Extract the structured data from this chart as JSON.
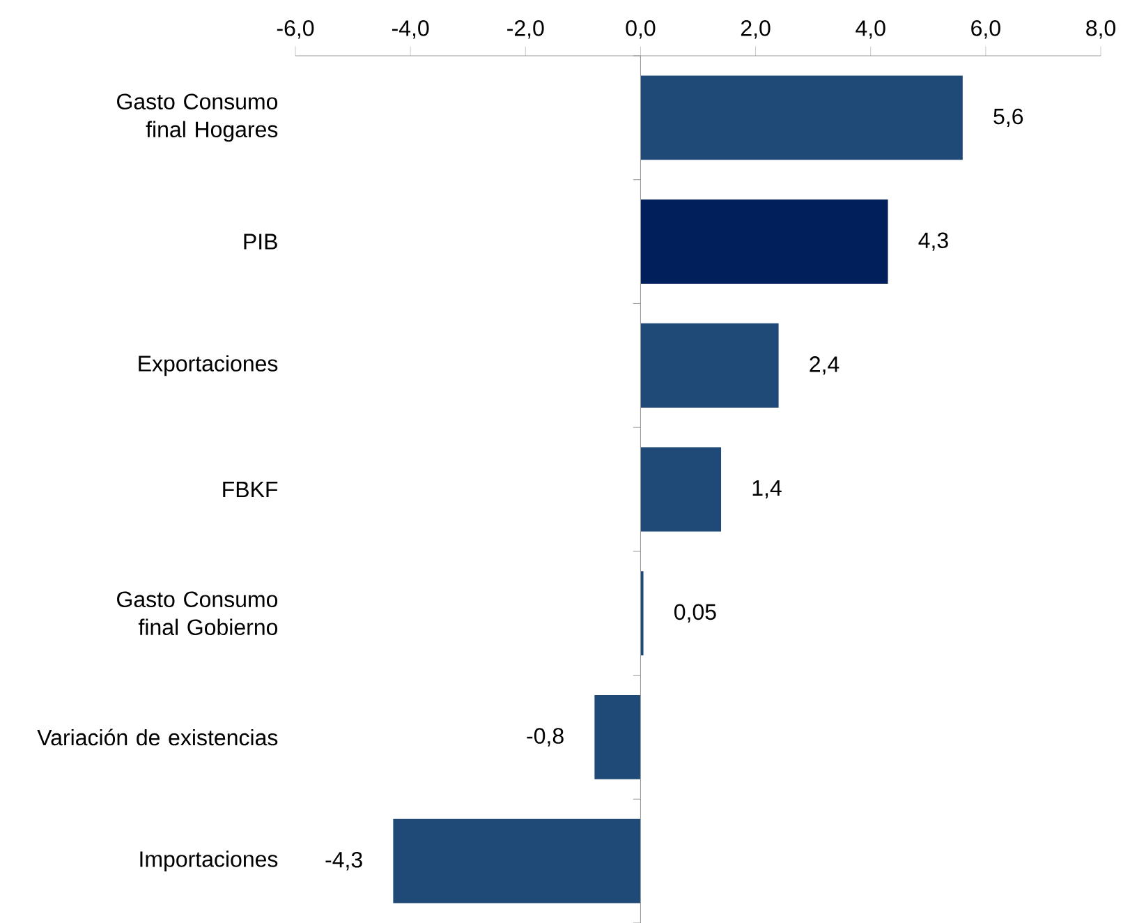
{
  "chart_data": {
    "type": "bar",
    "orientation": "horizontal",
    "categories": [
      "Gasto Consumo final Hogares",
      "PIB",
      "Exportaciones",
      "FBKF",
      "Gasto Consumo final Gobierno",
      "Variación de existencias",
      "Importaciones"
    ],
    "values": [
      5.6,
      4.3,
      2.4,
      1.4,
      0.05,
      -0.8,
      -4.3
    ],
    "value_labels": [
      "5,6",
      "4,3",
      "2,4",
      "1,4",
      "0,05",
      "-0,8",
      "-4,3"
    ],
    "colors": [
      "#1f4a78",
      "#001f5b",
      "#1f4a78",
      "#1f4a78",
      "#1f4a78",
      "#1f4a78",
      "#1f4a78"
    ],
    "xlim": [
      -6,
      8
    ],
    "xticks": [
      {
        "value": -6,
        "label": "-6,0"
      },
      {
        "value": -4,
        "label": "-4,0"
      },
      {
        "value": -2,
        "label": "-2,0"
      },
      {
        "value": 0,
        "label": "0,0"
      },
      {
        "value": 2,
        "label": "2,0"
      },
      {
        "value": 4,
        "label": "4,0"
      },
      {
        "value": 6,
        "label": "6,0"
      },
      {
        "value": 8,
        "label": "8,0"
      }
    ]
  }
}
